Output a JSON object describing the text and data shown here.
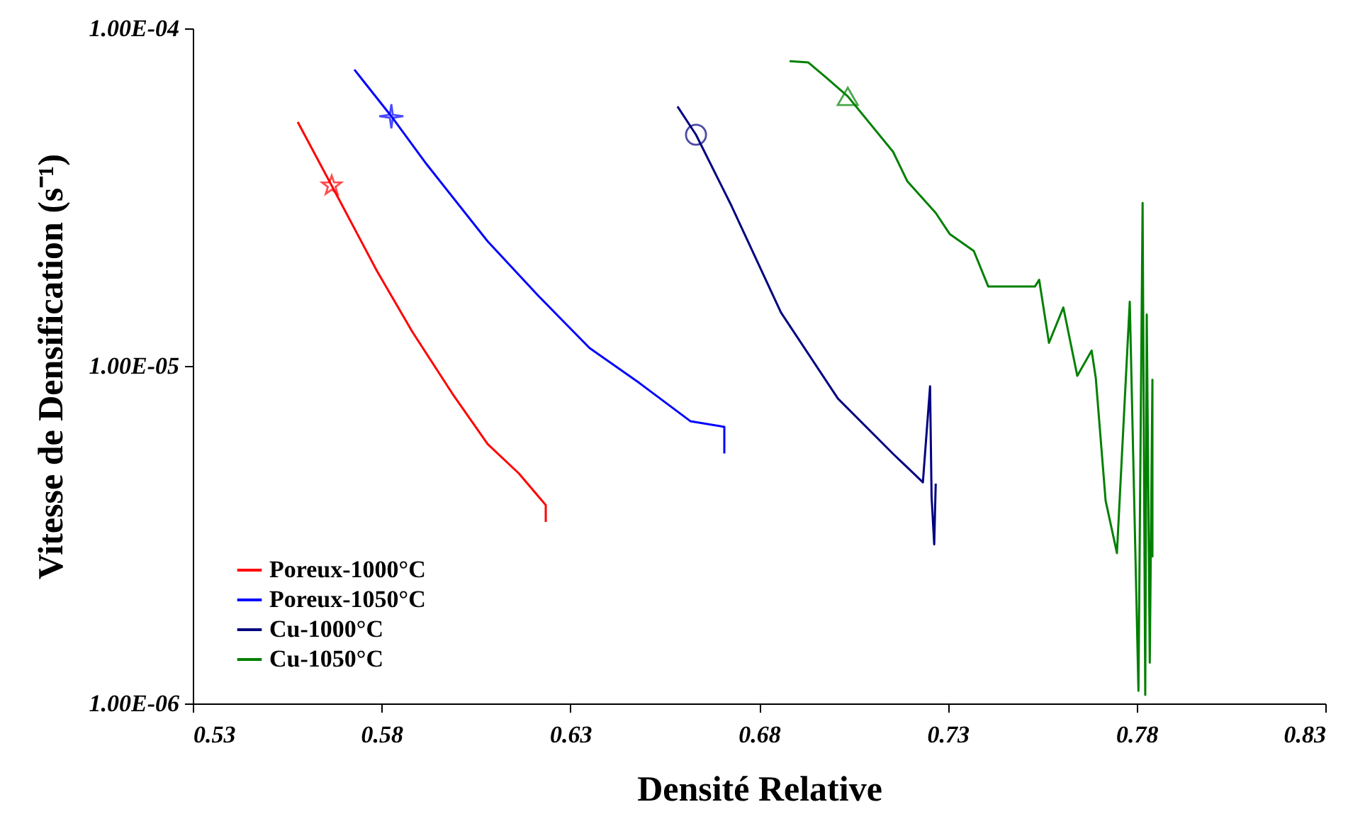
{
  "chart_data": {
    "type": "line",
    "xlabel": "Densité Relative",
    "ylabel": "Vitesse de Densification (s⁻¹)",
    "log": true,
    "grid": false,
    "legend": "bottom left",
    "line_style": "solid",
    "xlim": [
      0.53,
      0.83
    ],
    "xticks": [
      0.53,
      0.58,
      0.63,
      0.68,
      0.73,
      0.78,
      0.83
    ],
    "ylim": [
      1e-06,
      0.0001
    ],
    "yticks": [
      {
        "value": 1e-06,
        "label": "1.00E-06"
      },
      {
        "value": 1e-05,
        "label": "1.00E-05"
      },
      {
        "value": 0.0001,
        "label": "1.00E-04"
      }
    ],
    "series": [
      {
        "name": "Poreux-1000°C",
        "color": "#ff0000",
        "x": [
          0.5578,
          0.5668,
          0.5788,
          0.5882,
          0.5987,
          0.6081,
          0.6164,
          0.6235,
          0.6235
        ],
        "values": [
          5.28e-05,
          3.42e-05,
          1.91e-05,
          1.26e-05,
          8.3e-06,
          5.87e-06,
          4.8e-06,
          3.87e-06,
          3.45e-06
        ]
      },
      {
        "name": "Poreux-1050°C",
        "color": "#0000ff",
        "x": [
          0.5728,
          0.5826,
          0.592,
          0.6081,
          0.6216,
          0.6351,
          0.6483,
          0.6618,
          0.6708,
          0.6708
        ],
        "values": [
          7.55e-05,
          5.49e-05,
          3.95e-05,
          2.34e-05,
          1.61e-05,
          1.13e-05,
          8.9e-06,
          6.86e-06,
          6.6e-06,
          5.5e-06
        ]
      },
      {
        "name": "Cu-1000°C",
        "color": "#000080",
        "x": [
          0.6584,
          0.6633,
          0.6727,
          0.6858,
          0.7009,
          0.7155,
          0.7234,
          0.7253,
          0.7257,
          0.7264,
          0.7268
        ],
        "values": [
          5.87e-05,
          4.84e-05,
          2.98e-05,
          1.44e-05,
          8e-06,
          5.49e-06,
          4.52e-06,
          8.7e-06,
          4.1e-06,
          2.96e-06,
          4.48e-06
        ]
      },
      {
        "name": "Cu-1050°C",
        "color": "#008000",
        "x": [
          0.6881,
          0.693,
          0.6979,
          0.7035,
          0.7155,
          0.7193,
          0.7268,
          0.7305,
          0.7369,
          0.7407,
          0.7531,
          0.7542,
          0.7568,
          0.7606,
          0.7643,
          0.7681,
          0.7692,
          0.7718,
          0.7748,
          0.7782,
          0.7805,
          0.7816,
          0.7823,
          0.7827,
          0.7835,
          0.7842,
          0.7842
        ],
        "values": [
          8e-05,
          7.93e-05,
          7.13e-05,
          6.29e-05,
          4.31e-05,
          3.52e-05,
          2.84e-05,
          2.46e-05,
          2.19e-05,
          1.72e-05,
          1.72e-05,
          1.8e-05,
          1.17e-05,
          1.49e-05,
          9.35e-06,
          1.11e-05,
          9.2e-06,
          3.99e-06,
          2.79e-06,
          1.55e-05,
          1.09e-06,
          3.04e-05,
          1.06e-06,
          1.42e-05,
          1.32e-06,
          9.1e-06,
          2.71e-06
        ]
      },
      {
        "type": "scatter",
        "color": "#ff0000",
        "marker": "star",
        "x": [
          0.5668
        ],
        "values": [
          3.42e-05
        ]
      },
      {
        "type": "scatter",
        "color": "#0000ff",
        "marker": "cross",
        "x": [
          0.5826
        ],
        "values": [
          5.49e-05
        ]
      },
      {
        "type": "scatter",
        "color": "#000080",
        "marker": "circle",
        "x": [
          0.6633
        ],
        "values": [
          4.84e-05
        ]
      },
      {
        "type": "scatter",
        "color": "#008000",
        "marker": "triangle",
        "x": [
          0.7035
        ],
        "values": [
          6.29e-05
        ]
      }
    ]
  }
}
